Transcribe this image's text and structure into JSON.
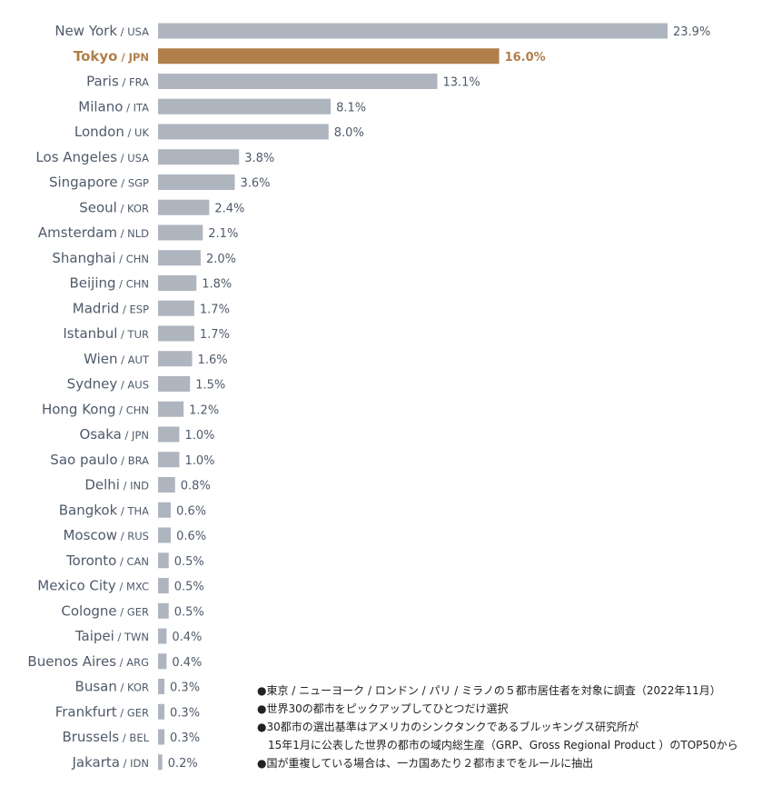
{
  "chart_data": {
    "type": "bar",
    "orientation": "horizontal",
    "unit_suffix": "%",
    "highlight_color": "#b07f4a",
    "bar_color": "#aeb5bf",
    "xlim": [
      0,
      24
    ],
    "items": [
      {
        "city": "New York",
        "code": "USA",
        "value": 23.9,
        "label": "23.9%"
      },
      {
        "city": "Tokyo",
        "code": "JPN",
        "value": 16.0,
        "label": "16.0%",
        "highlight": true
      },
      {
        "city": "Paris",
        "code": "FRA",
        "value": 13.1,
        "label": "13.1%"
      },
      {
        "city": "Milano",
        "code": "ITA",
        "value": 8.1,
        "label": "8.1%"
      },
      {
        "city": "London",
        "code": "UK",
        "value": 8.0,
        "label": "8.0%"
      },
      {
        "city": "Los Angeles",
        "code": "USA",
        "value": 3.8,
        "label": "3.8%"
      },
      {
        "city": "Singapore",
        "code": "SGP",
        "value": 3.6,
        "label": "3.6%"
      },
      {
        "city": "Seoul",
        "code": "KOR",
        "value": 2.4,
        "label": "2.4%"
      },
      {
        "city": "Amsterdam",
        "code": "NLD",
        "value": 2.1,
        "label": "2.1%"
      },
      {
        "city": "Shanghai",
        "code": "CHN",
        "value": 2.0,
        "label": "2.0%"
      },
      {
        "city": "Beijing",
        "code": "CHN",
        "value": 1.8,
        "label": "1.8%"
      },
      {
        "city": "Madrid",
        "code": "ESP",
        "value": 1.7,
        "label": "1.7%"
      },
      {
        "city": "Istanbul",
        "code": "TUR",
        "value": 1.7,
        "label": "1.7%"
      },
      {
        "city": "Wien",
        "code": "AUT",
        "value": 1.6,
        "label": "1.6%"
      },
      {
        "city": "Sydney",
        "code": "AUS",
        "value": 1.5,
        "label": "1.5%"
      },
      {
        "city": "Hong Kong",
        "code": "CHN",
        "value": 1.2,
        "label": "1.2%"
      },
      {
        "city": "Osaka",
        "code": "JPN",
        "value": 1.0,
        "label": "1.0%"
      },
      {
        "city": "Sao paulo",
        "code": "BRA",
        "value": 1.0,
        "label": "1.0%"
      },
      {
        "city": "Delhi",
        "code": "IND",
        "value": 0.8,
        "label": "0.8%"
      },
      {
        "city": "Bangkok",
        "code": "THA",
        "value": 0.6,
        "label": "0.6%"
      },
      {
        "city": "Moscow",
        "code": "RUS",
        "value": 0.6,
        "label": "0.6%"
      },
      {
        "city": "Toronto",
        "code": "CAN",
        "value": 0.5,
        "label": "0.5%"
      },
      {
        "city": "Mexico City",
        "code": "MXC",
        "value": 0.5,
        "label": "0.5%"
      },
      {
        "city": "Cologne",
        "code": "GER",
        "value": 0.5,
        "label": "0.5%"
      },
      {
        "city": "Taipei",
        "code": "TWN",
        "value": 0.4,
        "label": "0.4%"
      },
      {
        "city": "Buenos Aires",
        "code": "ARG",
        "value": 0.4,
        "label": "0.4%"
      },
      {
        "city": "Busan",
        "code": "KOR",
        "value": 0.3,
        "label": "0.3%"
      },
      {
        "city": "Frankfurt",
        "code": "GER",
        "value": 0.3,
        "label": "0.3%"
      },
      {
        "city": "Brussels",
        "code": "BEL",
        "value": 0.3,
        "label": "0.3%"
      },
      {
        "city": "Jakarta",
        "code": "IDN",
        "value": 0.2,
        "label": "0.2%"
      }
    ]
  },
  "notes": {
    "line1": "●東京 / ニューヨーク / ロンドン / パリ / ミラノの５都市居住者を対象に調査（2022年11月）",
    "line2": "●世界30の都市をピックアップしてひとつだけ選択",
    "line3a": "●30都市の選出基準はアメリカのシンクタンクであるブルッキングス研究所が",
    "line3b": "15年1月に公表した世界の都市の域内総生産（GRP、Gross Regional Product ）のTOP50から",
    "line4": "●国が重複している場合は、一カ国あたり２都市までをルールに抽出"
  }
}
